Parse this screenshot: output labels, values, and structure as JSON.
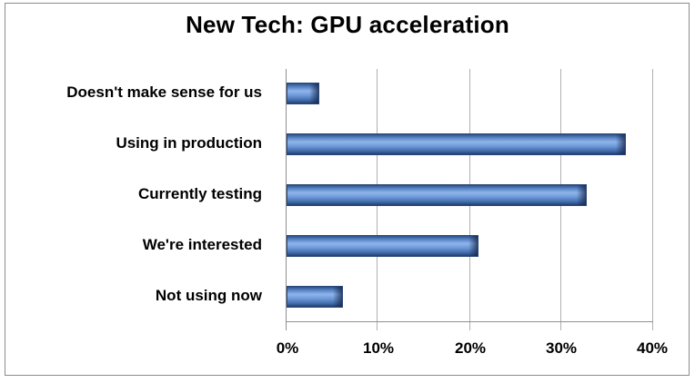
{
  "chart_data": {
    "type": "bar",
    "orientation": "horizontal",
    "title": "New Tech:  GPU acceleration",
    "categories": [
      "Doesn't make sense for us",
      "Using in production",
      "Currently testing",
      "We're interested",
      "Not using now"
    ],
    "values": [
      3.6,
      37.0,
      32.8,
      20.9,
      6.2
    ],
    "unit": "%",
    "xlabel": "",
    "ylabel": "",
    "xlim": [
      0,
      40
    ],
    "xticks": [
      "0%",
      "10%",
      "20%",
      "30%",
      "40%"
    ],
    "grid": true,
    "legend": null,
    "bar_color": "#4f7cc0"
  }
}
